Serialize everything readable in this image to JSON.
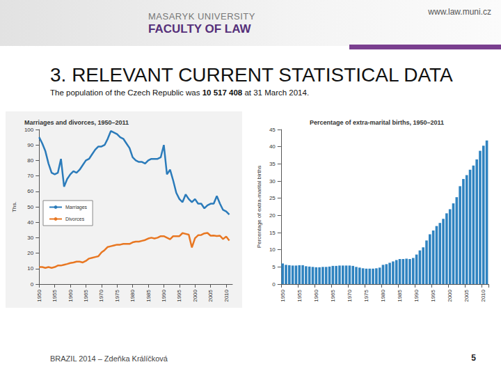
{
  "header": {
    "university": "MASARYK UNIVERSITY",
    "faculty": "FACULTY OF LAW",
    "url": "www.law.muni.cz"
  },
  "title": "3. RELEVANT CURRENT STATISTICAL DATA",
  "subtitle": {
    "before": "The population of the Czech Republic was ",
    "bold": "10 517 408",
    "after": " at 31 March 2014."
  },
  "footer": {
    "text": "BRAZIL 2014 – Zdeňka Králíčková",
    "page": "5"
  },
  "chart_data": [
    {
      "type": "line",
      "title": "Marriages and divorces, 1950–2011",
      "y_label": "Ths.",
      "x": [
        1950,
        1951,
        1952,
        1953,
        1954,
        1955,
        1956,
        1957,
        1958,
        1959,
        1960,
        1961,
        1962,
        1963,
        1964,
        1965,
        1966,
        1967,
        1968,
        1969,
        1970,
        1971,
        1972,
        1973,
        1974,
        1975,
        1976,
        1977,
        1978,
        1979,
        1980,
        1981,
        1982,
        1983,
        1984,
        1985,
        1986,
        1987,
        1988,
        1989,
        1990,
        1991,
        1992,
        1993,
        1994,
        1995,
        1996,
        1997,
        1998,
        1999,
        2000,
        2001,
        2002,
        2003,
        2004,
        2005,
        2006,
        2007,
        2008,
        2009,
        2010,
        2011
      ],
      "series": [
        {
          "name": "Marriages",
          "color": "#2b7bba",
          "values": [
            95,
            91,
            86,
            78,
            72,
            71,
            72,
            81,
            63,
            68,
            71,
            73,
            72,
            74,
            77,
            80,
            81,
            84,
            87,
            89,
            89,
            90,
            94,
            99,
            98,
            97,
            95,
            94,
            91,
            88,
            82,
            80,
            79,
            79,
            78,
            80,
            81,
            81,
            81,
            82,
            90,
            71,
            74,
            67,
            59,
            55,
            53,
            58,
            55,
            53,
            55,
            52,
            52,
            49,
            51,
            52,
            52,
            57,
            52,
            48,
            47,
            45
          ]
        },
        {
          "name": "Divorces",
          "color": "#e87722",
          "values": [
            11,
            11,
            10.5,
            11,
            10.5,
            11,
            12,
            12,
            12.5,
            13,
            13.6,
            14,
            14.5,
            14.5,
            14,
            15,
            16.5,
            17,
            17.5,
            18,
            20.5,
            22,
            24,
            24.5,
            25,
            25.5,
            25.5,
            26,
            26,
            26,
            27,
            27.5,
            27.5,
            28,
            28.5,
            29.5,
            30,
            29.5,
            30,
            31,
            31,
            30,
            29,
            31,
            31,
            31,
            33,
            32.5,
            32,
            23.7,
            29.7,
            31.6,
            31.8,
            32.8,
            33.1,
            31.3,
            31.4,
            31.1,
            31.3,
            29.1,
            30.8,
            28.1
          ]
        }
      ],
      "xlim": [
        1950,
        2012
      ],
      "xticks": [
        1950,
        1955,
        1960,
        1965,
        1970,
        1975,
        1980,
        1985,
        1990,
        1995,
        2000,
        2005,
        2010
      ],
      "ylim": [
        0,
        100
      ],
      "yticks": [
        0,
        10,
        20,
        30,
        40,
        50,
        60,
        70,
        80,
        90,
        100
      ],
      "grid": false,
      "legend": "left"
    },
    {
      "type": "bar",
      "title": "Percentage of extra-marital births, 1950–2011",
      "y_label": "Percentage of extra-marital births",
      "categories": [
        "1950",
        null,
        null,
        null,
        null,
        "1955",
        null,
        null,
        null,
        null,
        "1960",
        null,
        null,
        null,
        null,
        "1965",
        null,
        null,
        null,
        null,
        "1970",
        null,
        null,
        null,
        null,
        "1975",
        null,
        null,
        null,
        null,
        "1980",
        null,
        null,
        null,
        null,
        "1985",
        null,
        null,
        null,
        null,
        "1990",
        null,
        null,
        null,
        null,
        "1995",
        null,
        null,
        null,
        null,
        "2000",
        null,
        null,
        null,
        null,
        "2005",
        null,
        null,
        null,
        null,
        "2010",
        null
      ],
      "values": [
        6.0,
        5.6,
        5.5,
        5.4,
        5.4,
        5.5,
        5.5,
        5.2,
        5.1,
        5.0,
        4.9,
        4.9,
        5.0,
        5.0,
        5.1,
        5.3,
        5.3,
        5.4,
        5.4,
        5.4,
        5.4,
        5.3,
        5.0,
        4.8,
        4.6,
        4.5,
        4.5,
        4.5,
        4.6,
        4.8,
        5.6,
        5.8,
        6.2,
        6.6,
        7.0,
        7.3,
        7.3,
        7.4,
        7.3,
        7.6,
        8.6,
        9.8,
        10.7,
        12.7,
        14.5,
        15.6,
        16.9,
        17.8,
        19.0,
        20.6,
        21.8,
        23.5,
        25.3,
        28.5,
        30.6,
        31.7,
        33.3,
        34.5,
        36.3,
        38.8,
        40.3,
        41.8
      ],
      "color": "#2f83c0",
      "ylim": [
        0,
        45
      ],
      "yticks": [
        0,
        5,
        10,
        15,
        20,
        25,
        30,
        35,
        40,
        45
      ],
      "grid": false
    }
  ]
}
